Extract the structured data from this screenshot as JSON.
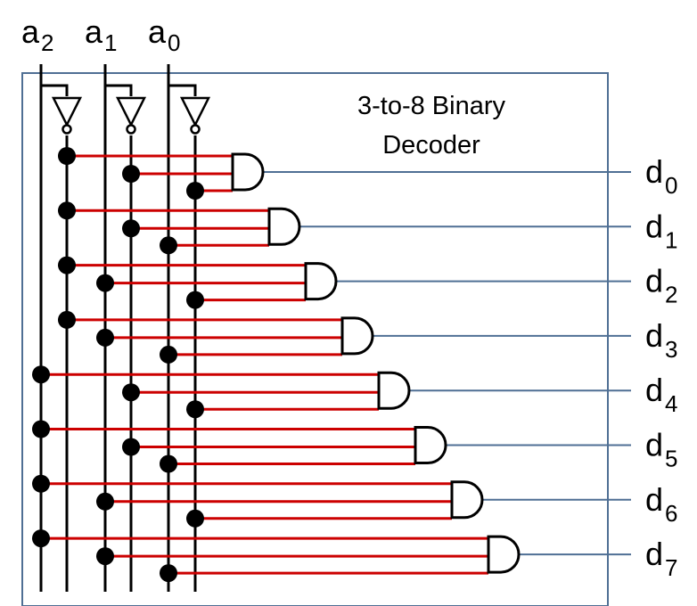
{
  "title_line1": "3-to-8 Binary",
  "title_line2": "Decoder",
  "inputs": [
    {
      "letter": "a",
      "sub": "2"
    },
    {
      "letter": "a",
      "sub": "1"
    },
    {
      "letter": "a",
      "sub": "0"
    }
  ],
  "outputs": [
    {
      "letter": "d",
      "sub": "0"
    },
    {
      "letter": "d",
      "sub": "1"
    },
    {
      "letter": "d",
      "sub": "2"
    },
    {
      "letter": "d",
      "sub": "3"
    },
    {
      "letter": "d",
      "sub": "4"
    },
    {
      "letter": "d",
      "sub": "5"
    },
    {
      "letter": "d",
      "sub": "6"
    },
    {
      "letter": "d",
      "sub": "7"
    }
  ],
  "colors": {
    "box": "#4f6f94",
    "wire": "#cc0000",
    "output": "#4f6f94",
    "line": "#000000"
  }
}
